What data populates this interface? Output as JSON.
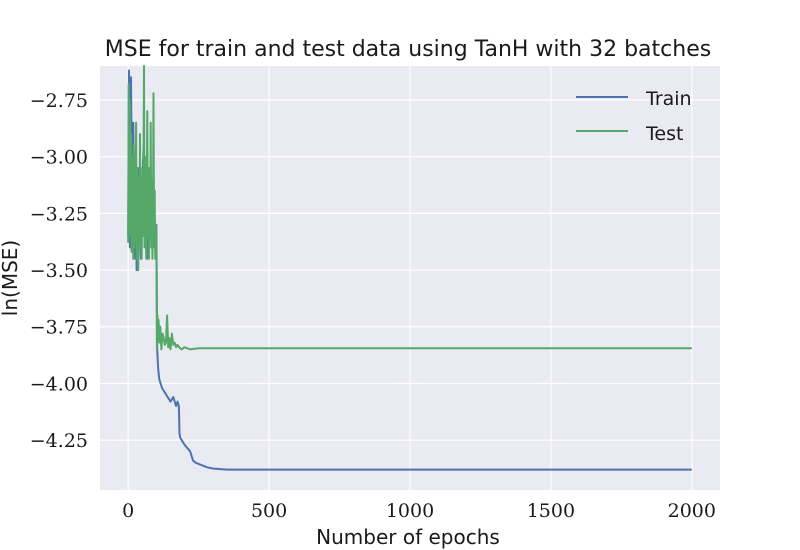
{
  "chart_data": {
    "type": "line",
    "title": "MSE for train and test data using TanH with 32 batches",
    "xlabel": "Number of epochs",
    "ylabel": "ln(MSE)",
    "xlim": [
      -100,
      2100
    ],
    "ylim": [
      -4.47,
      -2.6
    ],
    "x_ticks": [
      0,
      500,
      1000,
      1500,
      2000
    ],
    "x_tick_labels": [
      "0",
      "500",
      "1000",
      "1500",
      "2000"
    ],
    "y_ticks": [
      -2.75,
      -3.0,
      -3.25,
      -3.5,
      -3.75,
      -4.0,
      -4.25
    ],
    "y_tick_labels": [
      "−2.75",
      "−3.00",
      "−3.25",
      "−3.50",
      "−3.75",
      "−4.00",
      "−4.25"
    ],
    "grid": true,
    "legend_position": "top-right",
    "series": [
      {
        "name": "Train",
        "color": "#4c72b0",
        "x": [
          0,
          3,
          6,
          10,
          14,
          18,
          22,
          26,
          30,
          35,
          40,
          45,
          50,
          55,
          60,
          65,
          70,
          75,
          80,
          85,
          90,
          95,
          100,
          103,
          106,
          110,
          120,
          130,
          140,
          150,
          160,
          170,
          175,
          180,
          182,
          185,
          200,
          220,
          230,
          240,
          260,
          280,
          300,
          350,
          400,
          600,
          1000,
          1500,
          2000
        ],
        "y": [
          -3.35,
          -2.62,
          -3.4,
          -2.65,
          -3.3,
          -2.85,
          -3.45,
          -3.0,
          -3.5,
          -3.05,
          -3.25,
          -3.45,
          -3.1,
          -2.95,
          -3.35,
          -3.15,
          -3.45,
          -3.05,
          -3.3,
          -3.35,
          -3.1,
          -3.4,
          -3.3,
          -3.85,
          -3.93,
          -3.98,
          -4.02,
          -4.04,
          -4.06,
          -4.08,
          -4.06,
          -4.1,
          -4.08,
          -4.1,
          -4.22,
          -4.24,
          -4.27,
          -4.3,
          -4.34,
          -4.35,
          -4.36,
          -4.37,
          -4.375,
          -4.38,
          -4.38,
          -4.38,
          -4.38,
          -4.38,
          -4.38
        ]
      },
      {
        "name": "Test",
        "color": "#55a868",
        "x": [
          0,
          2,
          4,
          6,
          8,
          10,
          12,
          14,
          16,
          18,
          20,
          22,
          24,
          26,
          28,
          30,
          32,
          34,
          36,
          38,
          40,
          42,
          44,
          46,
          48,
          50,
          52,
          54,
          56,
          58,
          60,
          62,
          64,
          66,
          68,
          70,
          72,
          74,
          76,
          78,
          80,
          82,
          84,
          86,
          88,
          90,
          92,
          94,
          96,
          98,
          100,
          102,
          104,
          106,
          108,
          110,
          114,
          118,
          122,
          126,
          130,
          134,
          138,
          142,
          146,
          150,
          155,
          160,
          165,
          170,
          175,
          180,
          190,
          200,
          220,
          250,
          300,
          500,
          1000,
          1500,
          2000
        ],
        "y": [
          -3.38,
          -2.68,
          -3.35,
          -2.75,
          -3.3,
          -2.9,
          -3.42,
          -3.0,
          -3.2,
          -3.45,
          -2.95,
          -3.4,
          -3.1,
          -3.3,
          -2.85,
          -3.45,
          -3.05,
          -3.25,
          -3.5,
          -3.1,
          -3.3,
          -2.9,
          -3.4,
          -3.2,
          -3.45,
          -3.05,
          -3.35,
          -3.15,
          -2.6,
          -3.4,
          -3.0,
          -3.3,
          -3.45,
          -3.1,
          -2.8,
          -3.35,
          -3.05,
          -3.45,
          -3.2,
          -3.35,
          -2.85,
          -3.4,
          -3.1,
          -3.45,
          -3.25,
          -2.72,
          -3.4,
          -3.15,
          -3.45,
          -3.3,
          -3.38,
          -3.85,
          -3.7,
          -3.8,
          -3.72,
          -3.82,
          -3.75,
          -3.85,
          -3.78,
          -3.8,
          -3.83,
          -3.82,
          -3.7,
          -3.84,
          -3.8,
          -3.85,
          -3.78,
          -3.83,
          -3.82,
          -3.84,
          -3.83,
          -3.84,
          -3.85,
          -3.84,
          -3.85,
          -3.845,
          -3.845,
          -3.845,
          -3.845,
          -3.845,
          -3.845
        ]
      }
    ]
  }
}
